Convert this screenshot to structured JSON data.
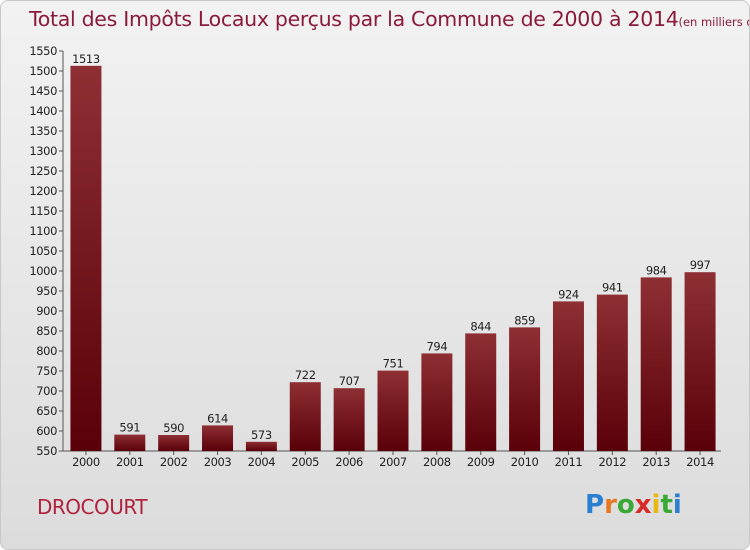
{
  "title": "Total des Impôts Locaux perçus par la Commune de 2000 à 2014",
  "title_unit": "(en milliers d'€)",
  "commune": "DROCOURT",
  "logo": {
    "letters": [
      "P",
      "r",
      "o",
      "x",
      "i",
      "t",
      "i"
    ],
    "colors": [
      "#2a7fd0",
      "#e87820",
      "#3aa835",
      "#d82a2a",
      "#e8b810",
      "#3aa835",
      "#2a7fd0"
    ]
  },
  "colors": {
    "bar_light": "#8e2f34",
    "bar_dark": "#5a0008",
    "title": "#8a1a3a"
  },
  "chart_data": {
    "type": "bar",
    "title": "Total des Impôts Locaux perçus par la Commune de 2000 à 2014",
    "xlabel": "",
    "ylabel": "",
    "categories": [
      "2000",
      "2001",
      "2002",
      "2003",
      "2004",
      "2005",
      "2006",
      "2007",
      "2008",
      "2009",
      "2010",
      "2011",
      "2012",
      "2013",
      "2014"
    ],
    "values": [
      1513,
      591,
      590,
      614,
      573,
      722,
      707,
      751,
      794,
      844,
      859,
      924,
      941,
      984,
      997
    ],
    "ylim": [
      550,
      1550
    ],
    "yticks": [
      550,
      600,
      650,
      700,
      750,
      800,
      850,
      900,
      950,
      1000,
      1050,
      1100,
      1150,
      1200,
      1250,
      1300,
      1350,
      1400,
      1450,
      1500,
      1550
    ],
    "grid": false,
    "legend": "none"
  }
}
